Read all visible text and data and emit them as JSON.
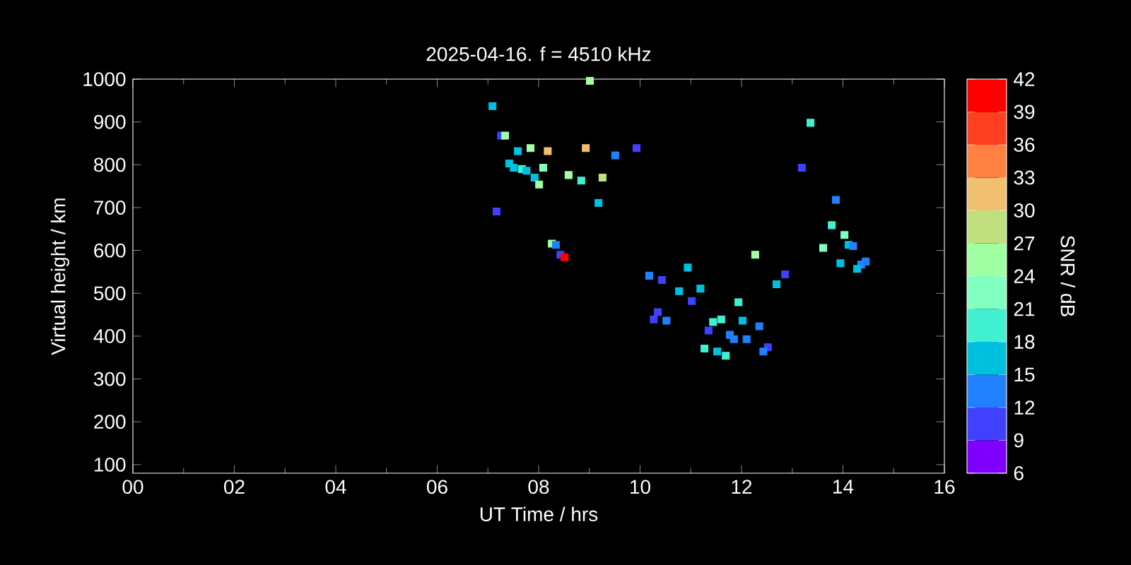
{
  "chart_data": {
    "type": "scatter",
    "title": "2025-04-16. f = 4510 kHz",
    "xlabel": "UT Time / hrs",
    "ylabel": "Virtual height / km",
    "clabel": "SNR / dB",
    "xlim": [
      0,
      16
    ],
    "ylim": [
      80,
      1000
    ],
    "xticks": [
      {
        "value": 0,
        "label": "00"
      },
      {
        "value": 2,
        "label": "02"
      },
      {
        "value": 4,
        "label": "04"
      },
      {
        "value": 6,
        "label": "06"
      },
      {
        "value": 8,
        "label": "08"
      },
      {
        "value": 10,
        "label": "10"
      },
      {
        "value": 12,
        "label": "12"
      },
      {
        "value": 14,
        "label": "14"
      },
      {
        "value": 16,
        "label": "16"
      }
    ],
    "yticks": [
      100,
      200,
      300,
      400,
      500,
      600,
      700,
      800,
      900,
      1000
    ],
    "clim": [
      6,
      42
    ],
    "cticks": [
      6,
      9,
      12,
      15,
      18,
      21,
      24,
      27,
      30,
      33,
      36,
      39,
      42
    ],
    "marker": "square",
    "x": [
      9.01,
      7.09,
      7.26,
      7.34,
      7.84,
      8.18,
      8.93,
      9.51,
      9.93,
      7.59,
      7.42,
      7.51,
      7.67,
      7.76,
      8.09,
      7.92,
      8.01,
      8.59,
      8.84,
      9.26,
      9.18,
      7.17,
      8.26,
      8.34,
      8.43,
      8.51,
      10.18,
      10.43,
      10.94,
      12.27,
      12.86,
      12.69,
      10.77,
      11.19,
      11.02,
      11.94,
      10.35,
      10.27,
      10.52,
      11.44,
      11.6,
      12.02,
      11.35,
      12.35,
      11.77,
      11.85,
      12.1,
      11.27,
      11.52,
      11.69,
      12.52,
      12.43,
      13.36,
      13.19,
      13.86,
      13.78,
      14.03,
      13.61,
      14.11,
      14.2,
      13.95,
      14.45,
      14.36,
      14.28
    ],
    "values": [
      996,
      937,
      868,
      868,
      839,
      832,
      839,
      822,
      839,
      832,
      803,
      793,
      790,
      786,
      793,
      770,
      754,
      776,
      763,
      770,
      711,
      691,
      616,
      613,
      590,
      584,
      541,
      531,
      560,
      590,
      544,
      521,
      505,
      511,
      482,
      479,
      456,
      439,
      436,
      433,
      439,
      436,
      413,
      423,
      403,
      393,
      393,
      371,
      364,
      354,
      374,
      364,
      898,
      793,
      718,
      659,
      636,
      606,
      613,
      610,
      570,
      574,
      567,
      557
    ],
    "cvalues": [
      25.5,
      16.5,
      10.5,
      25.5,
      25.5,
      31.5,
      31.5,
      13.5,
      10.5,
      16.5,
      16.5,
      16.5,
      19.5,
      16.5,
      22.5,
      16.5,
      25.5,
      25.5,
      19.5,
      28.5,
      16.5,
      10.5,
      25.5,
      13.5,
      10.5,
      40.5,
      13.5,
      10.5,
      16.5,
      25.5,
      10.5,
      16.5,
      16.5,
      16.5,
      10.5,
      19.5,
      10.5,
      10.5,
      13.5,
      19.5,
      19.5,
      16.5,
      10.5,
      13.5,
      13.5,
      13.5,
      13.5,
      19.5,
      16.5,
      19.5,
      10.5,
      13.5,
      19.5,
      10.5,
      13.5,
      19.5,
      22.5,
      22.5,
      16.5,
      13.5,
      16.5,
      13.5,
      13.5,
      16.5
    ]
  }
}
